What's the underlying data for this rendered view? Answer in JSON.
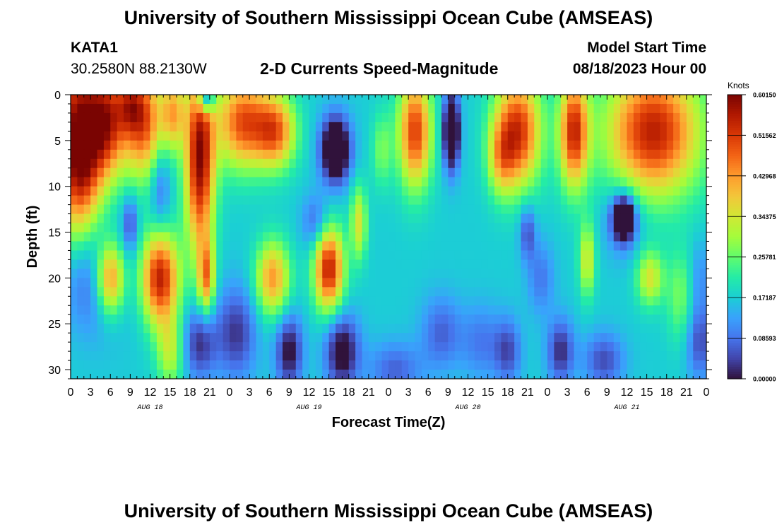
{
  "header": {
    "title": "University of Southern Mississippi Ocean Cube (AMSEAS)",
    "station_id": "KATA1",
    "station_coords": "30.2580N  88.2130W",
    "subtitle": "2-D Currents Speed-Magnitude",
    "model_start_label": "Model Start Time",
    "model_start_value": "08/18/2023 Hour 00"
  },
  "footer": {
    "title": "University of Southern Mississippi Ocean Cube (AMSEAS)"
  },
  "chart_data": {
    "type": "heatmap",
    "title": "2-D Currents Speed-Magnitude",
    "xlabel": "Forecast Time(Z)",
    "ylabel": "Depth (ft)",
    "x_range_hours": [
      0,
      96
    ],
    "y_range_ft": [
      0,
      31
    ],
    "x_ticks": [
      {
        "hour": 0,
        "label": "0"
      },
      {
        "hour": 3,
        "label": "3"
      },
      {
        "hour": 6,
        "label": "6"
      },
      {
        "hour": 9,
        "label": "9"
      },
      {
        "hour": 12,
        "label": "12"
      },
      {
        "hour": 15,
        "label": "15"
      },
      {
        "hour": 18,
        "label": "18"
      },
      {
        "hour": 21,
        "label": "21"
      },
      {
        "hour": 24,
        "label": "0"
      },
      {
        "hour": 27,
        "label": "3"
      },
      {
        "hour": 30,
        "label": "6"
      },
      {
        "hour": 33,
        "label": "9"
      },
      {
        "hour": 36,
        "label": "12"
      },
      {
        "hour": 39,
        "label": "15"
      },
      {
        "hour": 42,
        "label": "18"
      },
      {
        "hour": 45,
        "label": "21"
      },
      {
        "hour": 48,
        "label": "0"
      },
      {
        "hour": 51,
        "label": "3"
      },
      {
        "hour": 54,
        "label": "6"
      },
      {
        "hour": 57,
        "label": "9"
      },
      {
        "hour": 60,
        "label": "12"
      },
      {
        "hour": 63,
        "label": "15"
      },
      {
        "hour": 66,
        "label": "18"
      },
      {
        "hour": 69,
        "label": "21"
      },
      {
        "hour": 72,
        "label": "0"
      },
      {
        "hour": 75,
        "label": "3"
      },
      {
        "hour": 78,
        "label": "6"
      },
      {
        "hour": 81,
        "label": "9"
      },
      {
        "hour": 84,
        "label": "12"
      },
      {
        "hour": 87,
        "label": "15"
      },
      {
        "hour": 90,
        "label": "18"
      },
      {
        "hour": 93,
        "label": "21"
      },
      {
        "hour": 96,
        "label": "0"
      }
    ],
    "date_labels": [
      {
        "hour": 12,
        "label": "AUG 18"
      },
      {
        "hour": 36,
        "label": "AUG 19"
      },
      {
        "hour": 60,
        "label": "AUG 20"
      },
      {
        "hour": 84,
        "label": "AUG 21"
      }
    ],
    "y_ticks": [
      {
        "depth": 0,
        "label": "0"
      },
      {
        "depth": 5,
        "label": "5"
      },
      {
        "depth": 10,
        "label": "10"
      },
      {
        "depth": 15,
        "label": "15"
      },
      {
        "depth": 20,
        "label": "20"
      },
      {
        "depth": 25,
        "label": "25"
      },
      {
        "depth": 30,
        "label": "30"
      }
    ],
    "colorbar": {
      "units": "Knots",
      "min": 0.0,
      "max": 0.6015,
      "tick_labels": [
        {
          "value": 0.6015,
          "label": "0.60150"
        },
        {
          "value": 0.51562,
          "label": "0.51562"
        },
        {
          "value": 0.42968,
          "label": "0.42968"
        },
        {
          "value": 0.34375,
          "label": "0.34375"
        },
        {
          "value": 0.25781,
          "label": "0.25781"
        },
        {
          "value": 0.17187,
          "label": "0.17187"
        },
        {
          "value": 0.08593,
          "label": "0.08593"
        },
        {
          "value": 0.0,
          "label": "0.00000"
        }
      ],
      "colors": [
        "#30123b",
        "#4145ab",
        "#4675ed",
        "#39a2fc",
        "#1bcfd4",
        "#24eca6",
        "#61fc6c",
        "#a4fc3b",
        "#d1e834",
        "#f3c63a",
        "#fe9b2d",
        "#f36315",
        "#d93806",
        "#b11901",
        "#7a0402"
      ]
    },
    "grid": false,
    "legend": "colorbar-right",
    "speed_blobs_knots": [
      {
        "t": 1.5,
        "d": 7,
        "st": 3,
        "sd": 8,
        "v": 0.3
      },
      {
        "t": 0,
        "d": 0,
        "st": 5,
        "sd": 14,
        "v": 0.22
      },
      {
        "t": 5.5,
        "d": 3,
        "st": 3,
        "sd": 6,
        "v": 0.32
      },
      {
        "t": 3.5,
        "d": 20,
        "st": 5,
        "sd": 6,
        "v": -0.12
      },
      {
        "t": 6,
        "d": 20,
        "st": 2.2,
        "sd": 4,
        "v": 0.32
      },
      {
        "t": 9,
        "d": 14,
        "st": 1.2,
        "sd": 3,
        "v": -0.12
      },
      {
        "t": 11,
        "d": 3,
        "st": 3,
        "sd": 6,
        "v": 0.32
      },
      {
        "t": 9,
        "d": 1,
        "st": 2,
        "sd": 3,
        "v": 0.15
      },
      {
        "t": 13.5,
        "d": 20,
        "st": 2.8,
        "sd": 5,
        "v": 0.38
      },
      {
        "t": 13.5,
        "d": 10,
        "st": 1.5,
        "sd": 5,
        "v": -0.1
      },
      {
        "t": 15,
        "d": 28,
        "st": 2,
        "sd": 4,
        "v": 0.15
      },
      {
        "t": 15.5,
        "d": 2,
        "st": 1.8,
        "sd": 4,
        "v": 0.22
      },
      {
        "t": 19.5,
        "d": 7,
        "st": 2.2,
        "sd": 10,
        "v": 0.42
      },
      {
        "t": 20.5,
        "d": 20,
        "st": 1.2,
        "sd": 4,
        "v": 0.25
      },
      {
        "t": 20.5,
        "d": 0.5,
        "st": 1.2,
        "sd": 1.5,
        "v": -0.25
      },
      {
        "t": 19.5,
        "d": 27,
        "st": 2.5,
        "sd": 4,
        "v": -0.15
      },
      {
        "t": 26,
        "d": 3,
        "st": 4,
        "sd": 5,
        "v": 0.32
      },
      {
        "t": 31,
        "d": 4,
        "st": 3,
        "sd": 4,
        "v": 0.28
      },
      {
        "t": 30.5,
        "d": 20,
        "st": 2.5,
        "sd": 4,
        "v": 0.26
      },
      {
        "t": 25,
        "d": 26,
        "st": 3,
        "sd": 5,
        "v": -0.14
      },
      {
        "t": 33,
        "d": 28,
        "st": 2,
        "sd": 4,
        "v": -0.18
      },
      {
        "t": 40,
        "d": 6,
        "st": 2.2,
        "sd": 3.5,
        "v": -0.3
      },
      {
        "t": 39,
        "d": 19,
        "st": 2.2,
        "sd": 4.5,
        "v": 0.38
      },
      {
        "t": 43.5,
        "d": 14,
        "st": 1.2,
        "sd": 4,
        "v": 0.18
      },
      {
        "t": 41,
        "d": 28,
        "st": 2.5,
        "sd": 4,
        "v": -0.2
      },
      {
        "t": 37,
        "d": 14,
        "st": 2,
        "sd": 3,
        "v": -0.1
      },
      {
        "t": 47,
        "d": 6,
        "st": 1.5,
        "sd": 4,
        "v": 0.1
      },
      {
        "t": 52,
        "d": 4,
        "st": 2.5,
        "sd": 6,
        "v": 0.34
      },
      {
        "t": 49,
        "d": 30,
        "st": 4,
        "sd": 3,
        "v": -0.1
      },
      {
        "t": 57.5,
        "d": 4,
        "st": 1.2,
        "sd": 4,
        "v": -0.32
      },
      {
        "t": 56,
        "d": 26,
        "st": 3,
        "sd": 4,
        "v": -0.1
      },
      {
        "t": 62,
        "d": 27,
        "st": 3,
        "sd": 4,
        "v": -0.08
      },
      {
        "t": 67.5,
        "d": 4,
        "st": 3.5,
        "sd": 6,
        "v": 0.36
      },
      {
        "t": 65,
        "d": 7,
        "st": 2,
        "sd": 4,
        "v": 0.15
      },
      {
        "t": 69,
        "d": 15,
        "st": 1.2,
        "sd": 3,
        "v": -0.12
      },
      {
        "t": 66,
        "d": 28,
        "st": 2,
        "sd": 3.5,
        "v": -0.12
      },
      {
        "t": 71,
        "d": 20,
        "st": 2,
        "sd": 4,
        "v": -0.08
      },
      {
        "t": 76,
        "d": 4,
        "st": 2.2,
        "sd": 6,
        "v": 0.36
      },
      {
        "t": 78,
        "d": 18,
        "st": 1.2,
        "sd": 4,
        "v": 0.18
      },
      {
        "t": 74,
        "d": 28,
        "st": 2,
        "sd": 3.5,
        "v": -0.15
      },
      {
        "t": 80.5,
        "d": 29,
        "st": 3,
        "sd": 3,
        "v": -0.12
      },
      {
        "t": 88,
        "d": 4,
        "st": 7,
        "sd": 7,
        "v": 0.38
      },
      {
        "t": 83.5,
        "d": 13.5,
        "st": 1.5,
        "sd": 2.2,
        "v": -0.3
      },
      {
        "t": 83.5,
        "d": 13.5,
        "st": 3,
        "sd": 4,
        "v": -0.1
      },
      {
        "t": 87.5,
        "d": 20,
        "st": 2,
        "sd": 3,
        "v": 0.18
      },
      {
        "t": 92,
        "d": 22,
        "st": 2,
        "sd": 5,
        "v": 0.1
      },
      {
        "t": 95,
        "d": 27,
        "st": 2,
        "sd": 4,
        "v": -0.12
      },
      {
        "t": 95,
        "d": 20,
        "st": 1.5,
        "sd": 4,
        "v": -0.06
      }
    ]
  }
}
